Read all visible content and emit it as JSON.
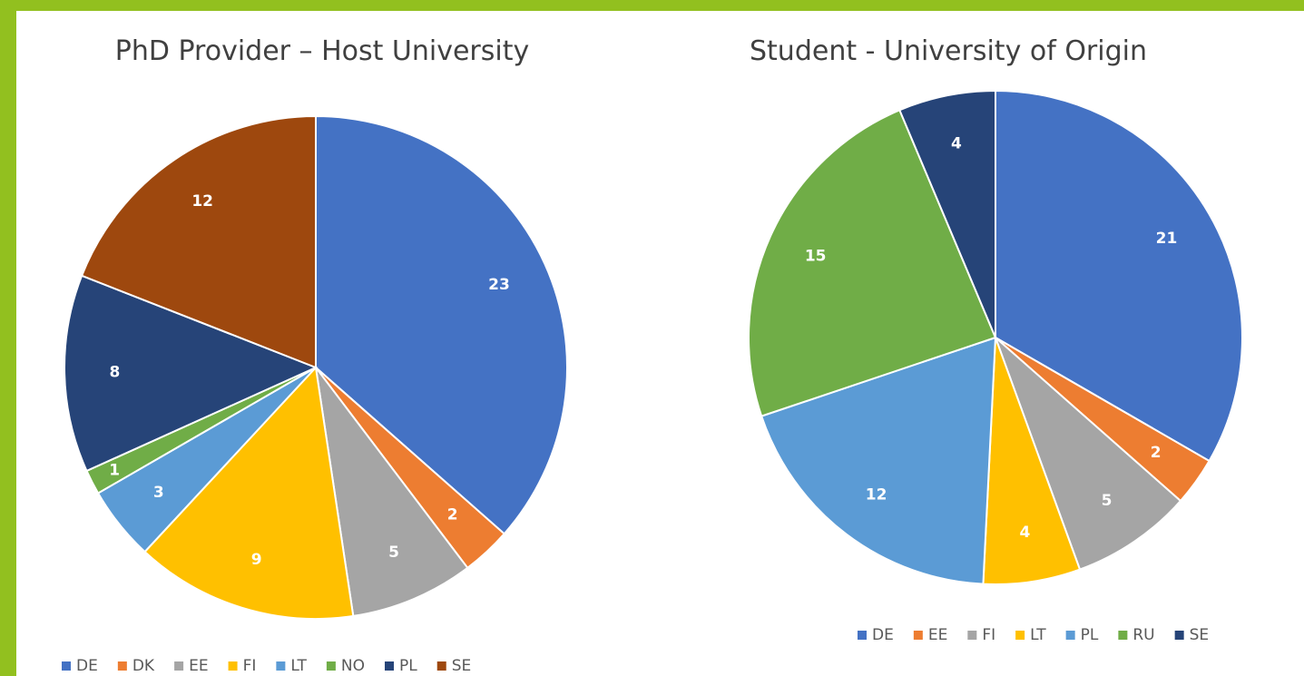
{
  "chart_data": [
    {
      "type": "pie",
      "title": "PhD Provider – Host University",
      "categories": [
        "DE",
        "DK",
        "EE",
        "FI",
        "LT",
        "NO",
        "PL",
        "SE"
      ],
      "values": [
        23,
        2,
        5,
        9,
        3,
        1,
        8,
        12
      ],
      "colors": [
        "#4472c4",
        "#ed7d31",
        "#a5a5a5",
        "#ffc000",
        "#5b9bd5",
        "#70ad47",
        "#264478",
        "#9e480e"
      ]
    },
    {
      "type": "pie",
      "title": "Student - University of Origin",
      "categories": [
        "DE",
        "EE",
        "FI",
        "LT",
        "PL",
        "RU",
        "SE"
      ],
      "values": [
        21,
        2,
        5,
        4,
        12,
        15,
        4
      ],
      "colors": [
        "#4472c4",
        "#ed7d31",
        "#a5a5a5",
        "#ffc000",
        "#5b9bd5",
        "#70ad47",
        "#264478"
      ]
    }
  ]
}
